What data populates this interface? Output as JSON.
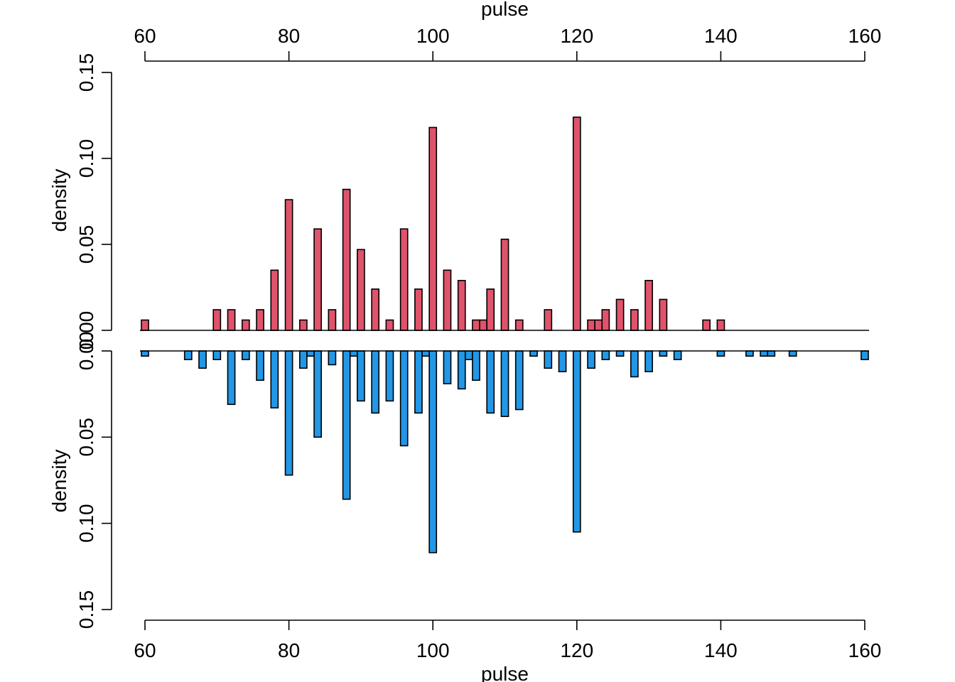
{
  "chart_data": {
    "type": "bar",
    "x_label": "pulse",
    "y_label": "density",
    "x_range": [
      60,
      160
    ],
    "x_ticks": [
      60,
      80,
      100,
      120,
      140,
      160
    ],
    "y_range": [
      0,
      0.15
    ],
    "y_ticks": [
      "0.00",
      "0.05",
      "0.10",
      "0.15"
    ],
    "bar_width": 1,
    "series": [
      {
        "panel": "top",
        "color": "#DF536B",
        "x": [
          60,
          70,
          72,
          74,
          76,
          78,
          80,
          82,
          84,
          86,
          88,
          90,
          92,
          94,
          96,
          98,
          100,
          102,
          104,
          106,
          107,
          108,
          110,
          112,
          116,
          120,
          122,
          123,
          124,
          126,
          128,
          130,
          132,
          138,
          140
        ],
        "values": [
          0.006,
          0.012,
          0.012,
          0.006,
          0.012,
          0.035,
          0.076,
          0.006,
          0.059,
          0.012,
          0.082,
          0.047,
          0.024,
          0.006,
          0.059,
          0.024,
          0.118,
          0.035,
          0.029,
          0.006,
          0.006,
          0.024,
          0.053,
          0.006,
          0.012,
          0.124,
          0.006,
          0.006,
          0.012,
          0.018,
          0.012,
          0.029,
          0.018,
          0.006,
          0.006
        ]
      },
      {
        "panel": "bottom",
        "color": "#2297E6",
        "x": [
          60,
          66,
          68,
          70,
          72,
          74,
          76,
          78,
          80,
          82,
          83,
          84,
          86,
          88,
          89,
          90,
          92,
          94,
          96,
          98,
          99,
          100,
          102,
          104,
          105,
          106,
          108,
          110,
          112,
          114,
          116,
          118,
          120,
          122,
          124,
          126,
          128,
          130,
          132,
          134,
          140,
          144,
          146,
          147,
          150,
          160
        ],
        "values": [
          0.003,
          0.005,
          0.01,
          0.005,
          0.031,
          0.005,
          0.017,
          0.033,
          0.072,
          0.01,
          0.003,
          0.05,
          0.008,
          0.086,
          0.003,
          0.029,
          0.036,
          0.029,
          0.055,
          0.036,
          0.003,
          0.117,
          0.019,
          0.022,
          0.005,
          0.017,
          0.036,
          0.038,
          0.034,
          0.003,
          0.01,
          0.012,
          0.105,
          0.01,
          0.005,
          0.003,
          0.015,
          0.012,
          0.003,
          0.005,
          0.003,
          0.003,
          0.003,
          0.003,
          0.003,
          0.005
        ]
      }
    ]
  }
}
